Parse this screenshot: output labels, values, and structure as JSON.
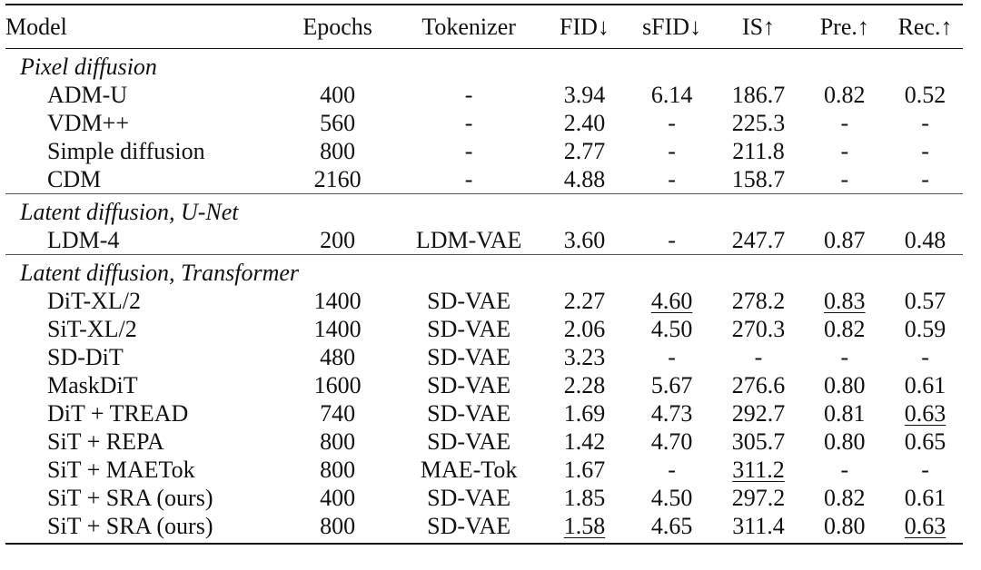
{
  "header": {
    "model": "Model",
    "epochs": "Epochs",
    "tokenizer": "Tokenizer",
    "fid": "FID↓",
    "sfid": "sFID↓",
    "is": "IS↑",
    "pre": "Pre.↑",
    "rec": "Rec.↑"
  },
  "groups": [
    {
      "title": "Pixel diffusion",
      "rows": [
        {
          "model": "ADM-U",
          "epochs": "400",
          "tokenizer": "-",
          "fid": "3.94",
          "sfid": "6.14",
          "is": "186.7",
          "pre": "0.82",
          "rec": "0.52"
        },
        {
          "model": "VDM++",
          "epochs": "560",
          "tokenizer": "-",
          "fid": "2.40",
          "sfid": "-",
          "is": "225.3",
          "pre": "-",
          "rec": "-"
        },
        {
          "model": "Simple diffusion",
          "epochs": "800",
          "tokenizer": "-",
          "fid": "2.77",
          "sfid": "-",
          "is": "211.8",
          "pre": "-",
          "rec": "-"
        },
        {
          "model": "CDM",
          "epochs": "2160",
          "tokenizer": "-",
          "fid": "4.88",
          "sfid": "-",
          "is": "158.7",
          "pre": "-",
          "rec": "-"
        }
      ]
    },
    {
      "title": "Latent diffusion, U-Net",
      "rows": [
        {
          "model": "LDM-4",
          "epochs": "200",
          "tokenizer": "LDM-VAE",
          "fid": "3.60",
          "sfid": "-",
          "is": "247.7",
          "pre": "0.87",
          "rec": "0.48"
        }
      ]
    },
    {
      "title": "Latent diffusion, Transformer",
      "rows": [
        {
          "model": "DiT-XL/2",
          "epochs": "1400",
          "tokenizer": "SD-VAE",
          "fid": "2.27",
          "sfid": "4.60",
          "is": "278.2",
          "pre": "0.83",
          "rec": "0.57"
        },
        {
          "model": "SiT-XL/2",
          "epochs": "1400",
          "tokenizer": "SD-VAE",
          "fid": "2.06",
          "sfid": "4.50",
          "is": "270.3",
          "pre": "0.82",
          "rec": "0.59"
        },
        {
          "model": "SD-DiT",
          "epochs": "480",
          "tokenizer": "SD-VAE",
          "fid": "3.23",
          "sfid": "-",
          "is": "-",
          "pre": "-",
          "rec": "-"
        },
        {
          "model": "MaskDiT",
          "epochs": "1600",
          "tokenizer": "SD-VAE",
          "fid": "2.28",
          "sfid": "5.67",
          "is": "276.6",
          "pre": "0.80",
          "rec": "0.61"
        },
        {
          "model": "DiT + TREAD",
          "epochs": "740",
          "tokenizer": "SD-VAE",
          "fid": "1.69",
          "sfid": "4.73",
          "is": "292.7",
          "pre": "0.81",
          "rec": "0.63"
        },
        {
          "model": "SiT + REPA",
          "epochs": "800",
          "tokenizer": "SD-VAE",
          "fid": "1.42",
          "sfid": "4.70",
          "is": "305.7",
          "pre": "0.80",
          "rec": "0.65"
        },
        {
          "model": "SiT + MAETok",
          "epochs": "800",
          "tokenizer": "MAE-Tok",
          "fid": "1.67",
          "sfid": "-",
          "is": "311.2",
          "pre": "-",
          "rec": "-"
        },
        {
          "model": "SiT + SRA (ours)",
          "epochs": "400",
          "tokenizer": "SD-VAE",
          "fid": "1.85",
          "sfid": "4.50",
          "is": "297.2",
          "pre": "0.82",
          "rec": "0.61"
        },
        {
          "model": "SiT + SRA (ours)",
          "epochs": "800",
          "tokenizer": "SD-VAE",
          "fid": "1.58",
          "sfid": "4.65",
          "is": "311.4",
          "pre": "0.80",
          "rec": "0.63"
        }
      ]
    }
  ]
}
